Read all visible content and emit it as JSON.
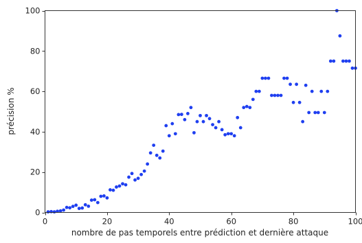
{
  "chart_data": {
    "type": "scatter",
    "title": "",
    "xlabel": "nombre de pas temporels entre prédiction et dernière attaque",
    "ylabel": "précision %",
    "xlim": [
      0,
      100
    ],
    "ylim": [
      0,
      100
    ],
    "xticks": [
      0,
      20,
      40,
      60,
      80,
      100
    ],
    "yticks": [
      0,
      20,
      40,
      60,
      80,
      100
    ],
    "grid": false,
    "color": "#1f3ff0",
    "series": [
      {
        "x": [
          1,
          2,
          3,
          4,
          5,
          6,
          7,
          8,
          9,
          10,
          11,
          12,
          13,
          14,
          15,
          16,
          17,
          18,
          19,
          20,
          21,
          22,
          23,
          24,
          25,
          26,
          27,
          28,
          29,
          30,
          31,
          32,
          33,
          34,
          35,
          36,
          37,
          38,
          39,
          40,
          41,
          42,
          43,
          44,
          45,
          46,
          47,
          48,
          49,
          50,
          51,
          52,
          53,
          54,
          55,
          56,
          57,
          58,
          59,
          60,
          61,
          62,
          63,
          64,
          65,
          66,
          67,
          68,
          69,
          70,
          71,
          72,
          73,
          74,
          75,
          76,
          77,
          78,
          79,
          80,
          81,
          82,
          83,
          84,
          85,
          86,
          87,
          88,
          89,
          90,
          91,
          92,
          93,
          94,
          95,
          96,
          97,
          98,
          99,
          100
        ],
        "y": [
          0.3,
          0.4,
          0.3,
          0.6,
          0.8,
          1.2,
          2.5,
          2.3,
          3.0,
          3.6,
          2.0,
          2.2,
          3.8,
          3.1,
          6.1,
          6.3,
          4.9,
          8.0,
          8.2,
          7.2,
          11.2,
          11.0,
          12.6,
          13.1,
          14.2,
          13.7,
          17.5,
          19.3,
          16.1,
          16.9,
          18.8,
          20.5,
          24.0,
          29.5,
          33.3,
          28.3,
          27.0,
          30.4,
          43.0,
          38.0,
          44.0,
          39.0,
          48.5,
          48.6,
          46.0,
          49.0,
          52.0,
          39.5,
          45.0,
          48.0,
          45.0,
          48.0,
          46.5,
          43.5,
          42.0,
          45.0,
          41.0,
          38.5,
          39.0,
          39.0,
          38.0,
          47.0,
          42.0,
          52.0,
          52.5,
          52.0,
          56.0,
          60.0,
          60.0,
          66.5,
          66.5,
          66.5,
          58.0,
          58.0,
          58.0,
          58.0,
          66.5,
          66.5,
          63.5,
          54.5,
          63.5,
          54.5,
          45.0,
          63.0,
          49.5,
          60.0,
          49.5,
          49.5,
          60.0,
          49.5,
          60.0,
          75.0,
          75.0,
          100.0,
          87.5,
          75.0,
          75.0,
          75.0,
          71.5,
          71.5
        ]
      }
    ]
  }
}
